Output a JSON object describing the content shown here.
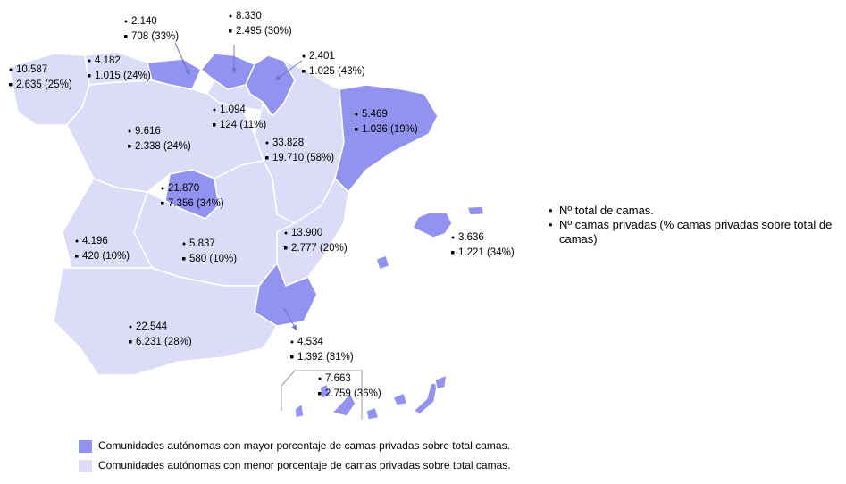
{
  "colors": {
    "high": "#9292f0",
    "low": "#dcdcf8"
  },
  "regions": [
    {
      "total": "10.587",
      "private": "2.635 (25%)",
      "highlight": false
    },
    {
      "total": "4.182",
      "private": "1.015 (24%)",
      "highlight": false
    },
    {
      "total": "2.140",
      "private": "708 (33%)",
      "highlight": true
    },
    {
      "total": "8.330",
      "private": "2.495 (30%)",
      "highlight": true
    },
    {
      "total": "2.401",
      "private": "1.025 (43%)",
      "highlight": true
    },
    {
      "total": "1.094",
      "private": "124 (11%)",
      "highlight": false
    },
    {
      "total": "9.616",
      "private": "2.338 (24%)",
      "highlight": false
    },
    {
      "total": "5.469",
      "private": "1.036 (19%)",
      "highlight": false
    },
    {
      "total": "33.828",
      "private": "19.710 (58%)",
      "highlight": true
    },
    {
      "total": "21.870",
      "private": "7.356 (34%)",
      "highlight": true
    },
    {
      "total": "13.900",
      "private": "2.777 (20%)",
      "highlight": false
    },
    {
      "total": "5.837",
      "private": "580 (10%)",
      "highlight": false
    },
    {
      "total": "4.196",
      "private": "420 (10%)",
      "highlight": false
    },
    {
      "total": "4.534",
      "private": "1.392 (31%)",
      "highlight": true
    },
    {
      "total": "22.544",
      "private": "6.231 (28%)",
      "highlight": false
    },
    {
      "total": "3.636",
      "private": "1.221 (34%)",
      "highlight": true
    },
    {
      "total": "7.663",
      "private": "2.759 (36%)",
      "highlight": true
    }
  ],
  "key": [
    "Nº total de camas.",
    "Nº camas privadas (% camas privadas sobre total de camas)."
  ],
  "legend": [
    {
      "label": "Comunidades autónomas con mayor porcentaje de camas privadas sobre total camas.",
      "highlight": true
    },
    {
      "label": "Comunidades autónomas con menor porcentaje de camas privadas sobre total camas.",
      "highlight": false
    }
  ]
}
